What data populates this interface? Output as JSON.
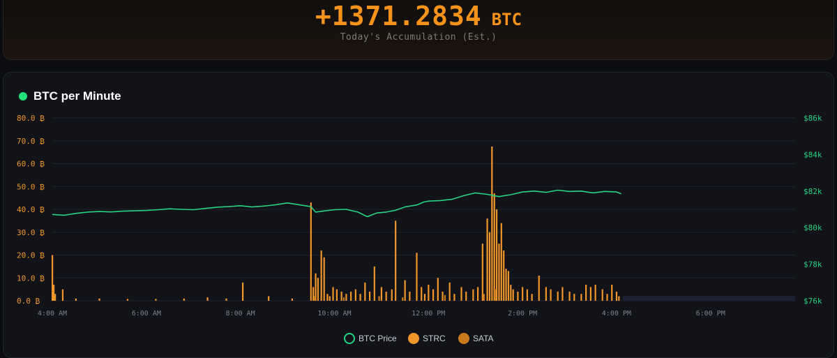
{
  "accumulation": {
    "value": "+1371.2834",
    "unit": "BTC",
    "label": "Today's Accumulation (Est.)"
  },
  "chart_title": "BTC per Minute",
  "colors": {
    "btc_price": "#27d483",
    "strc": "#f0962a",
    "sata": "#c97a1c",
    "status_dot": "#22e07a"
  },
  "chart_data": {
    "type": "bar",
    "title": "BTC per Minute",
    "x_tick_labels": [
      "4:00 AM",
      "6:00 AM",
      "8:00 AM",
      "10:00 AM",
      "12:00 PM",
      "2:00 PM",
      "4:00 PM",
      "6:00 PM"
    ],
    "x_tick_hours": [
      4,
      6,
      8,
      10,
      12,
      14,
      16,
      18
    ],
    "xlim_hours": [
      4,
      19.8
    ],
    "y_left": {
      "ylim": [
        0,
        80
      ],
      "ticks": [
        "0.0 ₿",
        "10.0 ₿",
        "20.0 ₿",
        "30.0 ₿",
        "40.0 ₿",
        "50.0 ₿",
        "60.0 ₿",
        "70.0 ₿",
        "80.0 ₿"
      ]
    },
    "y_right": {
      "ylim": [
        76000,
        86000
      ],
      "ticks": [
        "$76k",
        "$78k",
        "$80k",
        "$82k",
        "$84k",
        "$86k"
      ]
    },
    "legend_position": "bottom",
    "series": [
      {
        "name": "BTC Price",
        "kind": "line",
        "axis": "right",
        "x_hours": [
          4.0,
          4.25,
          4.5,
          4.75,
          5.0,
          5.25,
          5.5,
          5.75,
          6.0,
          6.25,
          6.5,
          6.75,
          7.0,
          7.25,
          7.5,
          7.75,
          8.0,
          8.25,
          8.5,
          8.75,
          9.0,
          9.25,
          9.5,
          9.6,
          9.75,
          10.0,
          10.25,
          10.5,
          10.7,
          10.9,
          11.1,
          11.3,
          11.5,
          11.75,
          11.9,
          12.0,
          12.25,
          12.5,
          12.75,
          13.0,
          13.25,
          13.5,
          13.75,
          14.0,
          14.25,
          14.5,
          14.75,
          15.0,
          15.25,
          15.5,
          15.75,
          16.0,
          16.1
        ],
        "values": [
          80720,
          80680,
          80780,
          80850,
          80880,
          80860,
          80900,
          80920,
          80940,
          80980,
          81030,
          81000,
          80980,
          81050,
          81120,
          81150,
          81200,
          81130,
          81180,
          81250,
          81350,
          81250,
          81150,
          80850,
          80900,
          80980,
          81000,
          80850,
          80600,
          80800,
          80850,
          80950,
          81130,
          81240,
          81400,
          81450,
          81480,
          81550,
          81750,
          81900,
          81820,
          81700,
          81800,
          81950,
          82000,
          81930,
          82050,
          81980,
          82000,
          81900,
          81980,
          81950,
          81850
        ]
      },
      {
        "name": "STRC",
        "kind": "bar",
        "axis": "left",
        "x_hours": [
          4.0,
          4.03,
          4.06,
          4.22,
          4.5,
          5.0,
          5.6,
          6.2,
          6.8,
          7.3,
          7.7,
          8.05,
          8.6,
          9.1,
          9.5,
          9.55,
          9.6,
          9.65,
          9.72,
          9.78,
          9.85,
          9.9,
          9.97,
          10.05,
          10.15,
          10.25,
          10.35,
          10.45,
          10.55,
          10.65,
          10.75,
          10.85,
          11.0,
          11.1,
          11.22,
          11.3,
          11.5,
          11.6,
          11.75,
          11.85,
          11.92,
          12.0,
          12.1,
          12.2,
          12.3,
          12.45,
          12.55,
          12.7,
          12.8,
          12.95,
          13.05,
          13.15,
          13.25,
          13.3,
          13.35,
          13.4,
          13.45,
          13.5,
          13.55,
          13.6,
          13.65,
          13.7,
          13.75,
          13.8,
          13.9,
          14.0,
          14.1,
          14.2,
          14.35,
          14.5,
          14.6,
          14.75,
          14.85,
          15.0,
          15.1,
          15.25,
          15.35,
          15.45,
          15.55,
          15.7,
          15.8,
          15.9,
          16.0,
          16.05
        ],
        "values": [
          20.0,
          7.0,
          3.0,
          5.0,
          1.0,
          1.0,
          0.8,
          0.8,
          1.0,
          1.5,
          1.0,
          8.0,
          2.0,
          1.0,
          43.0,
          6.0,
          12.0,
          10.0,
          22.0,
          19.0,
          3.0,
          2.0,
          6.0,
          5.0,
          4.0,
          3.0,
          4.0,
          5.0,
          3.0,
          8.0,
          4.0,
          15.0,
          6.0,
          4.0,
          5.0,
          35.0,
          9.0,
          4.0,
          21.0,
          6.0,
          3.0,
          7.0,
          5.0,
          10.0,
          4.0,
          8.0,
          3.0,
          6.0,
          4.0,
          5.0,
          6.0,
          25.0,
          36.0,
          30.0,
          67.5,
          47.0,
          40.0,
          25.0,
          34.0,
          22.0,
          14.0,
          13.0,
          7.0,
          5.0,
          4.0,
          6.0,
          5.0,
          3.0,
          11.0,
          6.0,
          5.0,
          4.0,
          6.0,
          4.0,
          3.0,
          3.0,
          7.0,
          6.0,
          7.0,
          5.0,
          3.0,
          7.0,
          4.0,
          2.0
        ]
      },
      {
        "name": "SATA",
        "kind": "bar",
        "axis": "left",
        "x_hours": [
          9.58,
          10.2,
          10.95,
          11.45,
          12.35,
          13.18,
          13.42
        ],
        "values": [
          2.0,
          1.5,
          2.0,
          1.5,
          2.5,
          3.0,
          5.0
        ]
      }
    ]
  }
}
